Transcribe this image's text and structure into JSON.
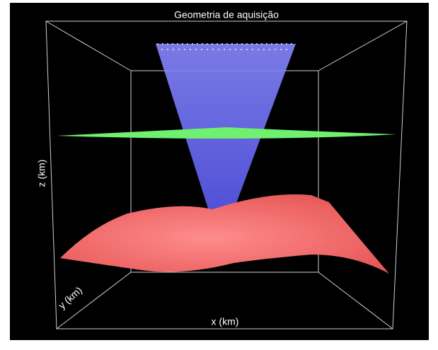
{
  "chart_data": {
    "type": "surface3d",
    "title": "Geometria de aquisição",
    "xlabel": "x (km)",
    "ylabel": "y (km)",
    "zlabel": "z (km)"
  }
}
